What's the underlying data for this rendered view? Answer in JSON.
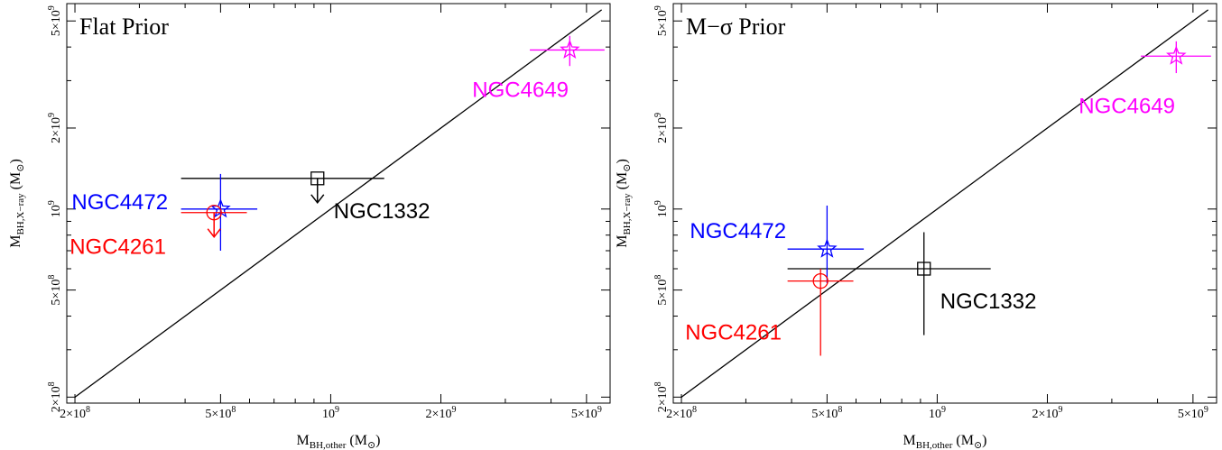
{
  "chart_data": [
    {
      "type": "scatter",
      "title": "Flat Prior",
      "x_scale": "log",
      "y_scale": "log",
      "xlim": [
        190000000.0,
        5800000000.0
      ],
      "ylim": [
        190000000.0,
        5800000000.0
      ],
      "xlabel": {
        "main": "M",
        "sub": "BH,other",
        "unit": " (M",
        "unit_sub": "⊙",
        "close": ")"
      },
      "ylabel": {
        "main": "M",
        "sub": "BH,X−ray",
        "unit": " (M",
        "unit_sub": "⊙",
        "close": ")"
      },
      "xticks": [
        {
          "value": 200000000.0,
          "mant": "2×10",
          "exp": "8"
        },
        {
          "value": 500000000.0,
          "mant": "5×10",
          "exp": "8"
        },
        {
          "value": 1000000000.0,
          "mant": "10",
          "exp": "9"
        },
        {
          "value": 2000000000.0,
          "mant": "2×10",
          "exp": "9"
        },
        {
          "value": 5000000000.0,
          "mant": "5×10",
          "exp": "9"
        }
      ],
      "yticks": [
        {
          "value": 200000000.0,
          "mant": "2×10",
          "exp": "8"
        },
        {
          "value": 500000000.0,
          "mant": "5×10",
          "exp": "8"
        },
        {
          "value": 1000000000.0,
          "mant": "10",
          "exp": "9"
        },
        {
          "value": 2000000000.0,
          "mant": "2×10",
          "exp": "9"
        },
        {
          "value": 5000000000.0,
          "mant": "5×10",
          "exp": "9"
        }
      ],
      "reference_line": {
        "x": [
          200000000.0,
          5500000000.0
        ],
        "y": [
          200000000.0,
          5500000000.0
        ]
      },
      "points": [
        {
          "name": "NGC4649",
          "color": "#ff00ff",
          "marker": "star",
          "x": 4500000000.0,
          "y": 3900000000.0,
          "xerr": [
            3500000000.0,
            5600000000.0
          ],
          "yerr": [
            3400000000.0,
            4400000000.0
          ],
          "upper_limit": false,
          "label_pos": "below-left"
        },
        {
          "name": "NGC1332",
          "color": "#000000",
          "marker": "square",
          "x": 920000000.0,
          "y": 1300000000.0,
          "xerr": [
            390000000.0,
            1400000000.0
          ],
          "yerr": null,
          "upper_limit": true,
          "label_pos": "below-right"
        },
        {
          "name": "NGC4472",
          "color": "#0000ff",
          "marker": "star",
          "x": 500000000.0,
          "y": 1000000000.0,
          "xerr": [
            390000000.0,
            630000000.0
          ],
          "yerr": [
            700000000.0,
            1350000000.0
          ],
          "upper_limit": false,
          "label_pos": "left"
        },
        {
          "name": "NGC4261",
          "color": "#ff0000",
          "marker": "circle",
          "x": 480000000.0,
          "y": 970000000.0,
          "xerr": [
            390000000.0,
            590000000.0
          ],
          "yerr": null,
          "upper_limit": true,
          "label_pos": "below-left"
        }
      ]
    },
    {
      "type": "scatter",
      "title": "M−σ Prior",
      "x_scale": "log",
      "y_scale": "log",
      "xlim": [
        190000000.0,
        5800000000.0
      ],
      "ylim": [
        190000000.0,
        5800000000.0
      ],
      "xlabel": {
        "main": "M",
        "sub": "BH,other",
        "unit": " (M",
        "unit_sub": "⊙",
        "close": ")"
      },
      "ylabel": {
        "main": "M",
        "sub": "BH,X−ray",
        "unit": " (M",
        "unit_sub": "⊙",
        "close": ")"
      },
      "xticks": [
        {
          "value": 200000000.0,
          "mant": "2×10",
          "exp": "8"
        },
        {
          "value": 500000000.0,
          "mant": "5×10",
          "exp": "8"
        },
        {
          "value": 1000000000.0,
          "mant": "10",
          "exp": "9"
        },
        {
          "value": 2000000000.0,
          "mant": "2×10",
          "exp": "9"
        },
        {
          "value": 5000000000.0,
          "mant": "5×10",
          "exp": "9"
        }
      ],
      "yticks": [
        {
          "value": 200000000.0,
          "mant": "2×10",
          "exp": "8"
        },
        {
          "value": 500000000.0,
          "mant": "5×10",
          "exp": "8"
        },
        {
          "value": 1000000000.0,
          "mant": "10",
          "exp": "9"
        },
        {
          "value": 2000000000.0,
          "mant": "2×10",
          "exp": "9"
        },
        {
          "value": 5000000000.0,
          "mant": "5×10",
          "exp": "9"
        }
      ],
      "reference_line": {
        "x": [
          200000000.0,
          5500000000.0
        ],
        "y": [
          200000000.0,
          5500000000.0
        ]
      },
      "points": [
        {
          "name": "NGC4649",
          "color": "#ff00ff",
          "marker": "star",
          "x": 4500000000.0,
          "y": 3700000000.0,
          "xerr": [
            3600000000.0,
            5600000000.0
          ],
          "yerr": [
            3200000000.0,
            4200000000.0
          ],
          "upper_limit": false,
          "label_pos": "below-left"
        },
        {
          "name": "NGC1332",
          "color": "#000000",
          "marker": "square",
          "x": 920000000.0,
          "y": 600000000.0,
          "xerr": [
            390000000.0,
            1400000000.0
          ],
          "yerr": [
            340000000.0,
            820000000.0
          ],
          "upper_limit": false,
          "label_pos": "below-right"
        },
        {
          "name": "NGC4472",
          "color": "#0000ff",
          "marker": "star",
          "x": 500000000.0,
          "y": 710000000.0,
          "xerr": [
            390000000.0,
            630000000.0
          ],
          "yerr": [
            530000000.0,
            1030000000.0
          ],
          "upper_limit": false,
          "label_pos": "above-left"
        },
        {
          "name": "NGC4261",
          "color": "#ff0000",
          "marker": "circle",
          "x": 480000000.0,
          "y": 540000000.0,
          "xerr": [
            390000000.0,
            590000000.0
          ],
          "yerr": [
            285000000.0,
            600000000.0
          ],
          "upper_limit": false,
          "label_pos": "below-left"
        }
      ]
    }
  ]
}
